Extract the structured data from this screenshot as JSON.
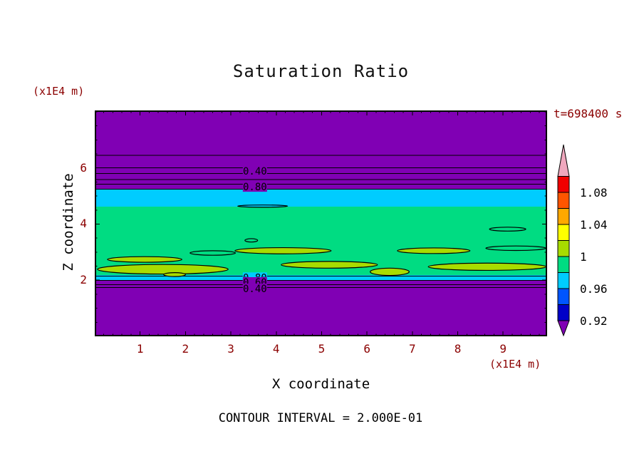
{
  "chart_data": {
    "type": "contour",
    "title": "Saturation Ratio",
    "xlabel": "X coordinate",
    "zlabel": "Z coordinate",
    "x_unit": "(x1E4 m)",
    "z_unit": "(x1E4 m)",
    "time_label": "t=698400 s",
    "contour_interval_label": "CONTOUR INTERVAL = 2.000E-01",
    "xlim": [
      0,
      9.97
    ],
    "zlim": [
      0,
      8.05
    ],
    "x_major_ticks": [
      1,
      2,
      3,
      4,
      5,
      6,
      7,
      8,
      9
    ],
    "x_minor_step": 0.2,
    "z_major_ticks": [
      2,
      4,
      6
    ],
    "z_minor_step": 0.5,
    "colors": {
      "purple": "#8000B4",
      "navy": "#0000C8",
      "blue": "#0055FF",
      "cyan": "#00CCFF",
      "green": "#00DC82",
      "ygreen": "#A8DC00",
      "yellow": "#FFFF00",
      "orange": "#FFA800",
      "orangered": "#FF5500",
      "red": "#F00000",
      "pink": "#F0A8BE",
      "contour_line": "#000000",
      "tick_label": "#8B0000",
      "text": "#000000"
    },
    "bands": [
      {
        "z_top": 8.05,
        "z_bottom": 5.24,
        "color": "purple"
      },
      {
        "z_top": 5.24,
        "z_bottom": 4.62,
        "color": "cyan"
      },
      {
        "z_top": 4.62,
        "z_bottom": 2.18,
        "color": "green"
      },
      {
        "z_top": 2.18,
        "z_bottom": 1.99,
        "color": "cyan"
      },
      {
        "z_top": 1.99,
        "z_bottom": 0,
        "color": "purple"
      }
    ],
    "contour_line_zs": [
      6.45,
      6.0,
      5.8,
      5.59,
      5.42,
      5.24,
      2.14,
      1.99,
      1.84,
      1.74
    ],
    "contour_labels": [
      {
        "text": "0.40",
        "x": 3.53,
        "z": 5.89,
        "bg": "purple"
      },
      {
        "text": "0.80",
        "x": 3.53,
        "z": 5.33,
        "bg": "purple"
      },
      {
        "text": "0.80",
        "x": 3.53,
        "z": 2.1,
        "bg": "cyan"
      },
      {
        "text": "0.60",
        "x": 3.53,
        "z": 1.93,
        "bg": "purple"
      },
      {
        "text": "0.40",
        "x": 3.53,
        "z": 1.7,
        "bg": "purple"
      }
    ],
    "blobs": [
      {
        "x": 1.5,
        "z": 2.39,
        "rx": 1.44,
        "rz": 0.17,
        "fill": "ygreen"
      },
      {
        "x": 1.1,
        "z": 2.74,
        "rx": 0.82,
        "rz": 0.1,
        "fill": "ygreen"
      },
      {
        "x": 1.76,
        "z": 2.2,
        "rx": 0.24,
        "rz": 0.07,
        "fill": "ygreen"
      },
      {
        "x": 4.15,
        "z": 3.05,
        "rx": 1.06,
        "rz": 0.11,
        "fill": "ygreen"
      },
      {
        "x": 5.17,
        "z": 2.55,
        "rx": 1.06,
        "rz": 0.12,
        "fill": "ygreen"
      },
      {
        "x": 6.5,
        "z": 2.3,
        "rx": 0.43,
        "rz": 0.13,
        "fill": "ygreen"
      },
      {
        "x": 7.47,
        "z": 3.05,
        "rx": 0.8,
        "rz": 0.1,
        "fill": "ygreen"
      },
      {
        "x": 8.65,
        "z": 2.48,
        "rx": 1.3,
        "rz": 0.13,
        "fill": "ygreen"
      },
      {
        "x": 9.28,
        "z": 3.14,
        "rx": 0.66,
        "rz": 0.08,
        "fill": null
      },
      {
        "x": 9.1,
        "z": 3.82,
        "rx": 0.4,
        "rz": 0.07,
        "fill": null
      },
      {
        "x": 2.6,
        "z": 2.97,
        "rx": 0.5,
        "rz": 0.08,
        "fill": null
      },
      {
        "x": 3.45,
        "z": 3.42,
        "rx": 0.14,
        "rz": 0.06,
        "fill": null
      },
      {
        "x": 3.7,
        "z": 4.64,
        "rx": 0.55,
        "rz": 0.04,
        "fill": null
      }
    ],
    "colorbar": {
      "top_arrow": "pink",
      "bottom_arrow": "purple",
      "segments": [
        "red",
        "orangered",
        "orange",
        "yellow",
        "ygreen",
        "green",
        "cyan",
        "blue",
        "navy"
      ],
      "labels": [
        {
          "text": "1.08",
          "value": 1.08,
          "boundary_index": 1
        },
        {
          "text": "1.04",
          "value": 1.04,
          "boundary_index": 3
        },
        {
          "text": "1",
          "value": 1.0,
          "boundary_index": 5
        },
        {
          "text": "0.96",
          "value": 0.96,
          "boundary_index": 7
        },
        {
          "text": "0.92",
          "value": 0.92,
          "boundary_index": 9
        }
      ]
    }
  }
}
